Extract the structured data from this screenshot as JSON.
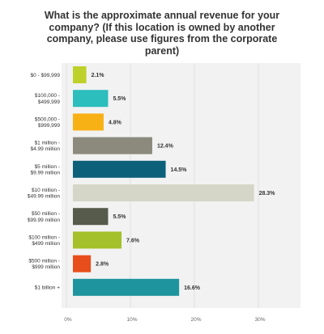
{
  "chart_data": {
    "type": "bar",
    "orientation": "horizontal",
    "title": "What is the approximate annual revenue for your company? (If this location is owned by another company, please use figures from the corporate parent)",
    "categories": [
      [
        "$0 - $99,999"
      ],
      [
        "$100,000 -",
        "$499,999"
      ],
      [
        "$500,000 -",
        "$999,999"
      ],
      [
        "$1 million -",
        "$4.99 million"
      ],
      [
        "$5 million -",
        "$9.99 million"
      ],
      [
        "$10 million -",
        "$49.99 million"
      ],
      [
        "$50 million -",
        "$99.99 million"
      ],
      [
        "$100 million -",
        "$499 million"
      ],
      [
        "$500 million -",
        "$999 million"
      ],
      [
        "$1 billion +"
      ]
    ],
    "values": [
      2.1,
      5.5,
      4.8,
      12.4,
      14.5,
      28.3,
      5.5,
      7.6,
      2.8,
      16.6
    ],
    "value_labels": [
      "2.1%",
      "5.5%",
      "4.8%",
      "12.4%",
      "14.5%",
      "28.3%",
      "5.5%",
      "7.6%",
      "2.8%",
      "16.6%"
    ],
    "colors": [
      "#bed12a",
      "#2cbdbd",
      "#f8b115",
      "#8b8a7c",
      "#0d6079",
      "#d5d6c7",
      "#575b4b",
      "#a4c02b",
      "#e84e1b",
      "#1d949e"
    ],
    "x_ticks": [
      "0%",
      "10%",
      "20%",
      "30%"
    ],
    "xlim": [
      0,
      36
    ],
    "grid": true
  }
}
